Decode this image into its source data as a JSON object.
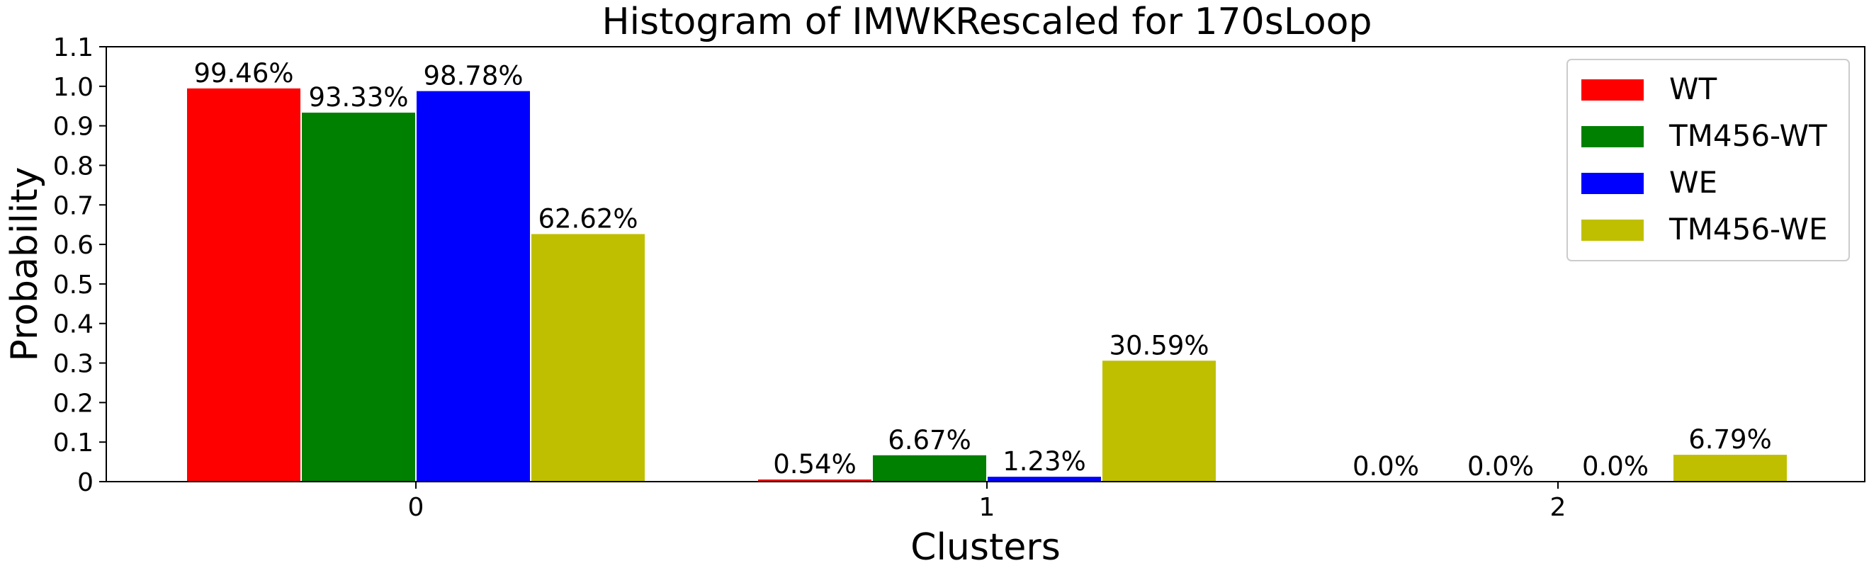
{
  "chart_data": {
    "type": "bar",
    "title": "Histogram of IMWKRescaled for 170sLoop",
    "xlabel": "Clusters",
    "ylabel": "Probability",
    "categories": [
      "0",
      "1",
      "2"
    ],
    "ylim": [
      0,
      1.1
    ],
    "yticks": [
      "0",
      "0.1",
      "0.2",
      "0.3",
      "0.4",
      "0.5",
      "0.6",
      "0.7",
      "0.8",
      "0.9",
      "1.0",
      "1.1"
    ],
    "grid": false,
    "legend_position": "top-right",
    "series": [
      {
        "name": "WT",
        "color": "#ff0000",
        "values": [
          0.9946,
          0.0054,
          0.0
        ],
        "labels": [
          "99.46%",
          "0.54%",
          "0.0%"
        ]
      },
      {
        "name": "TM456-WT",
        "color": "#008000",
        "values": [
          0.9333,
          0.0667,
          0.0
        ],
        "labels": [
          "93.33%",
          "6.67%",
          "0.0%"
        ]
      },
      {
        "name": "WE",
        "color": "#0000ff",
        "values": [
          0.9878,
          0.0123,
          0.0
        ],
        "labels": [
          "98.78%",
          "1.23%",
          "0.0%"
        ]
      },
      {
        "name": "TM456-WE",
        "color": "#bfbf00",
        "values": [
          0.6262,
          0.3059,
          0.0679
        ],
        "labels": [
          "62.62%",
          "30.59%",
          "6.79%"
        ]
      }
    ]
  }
}
